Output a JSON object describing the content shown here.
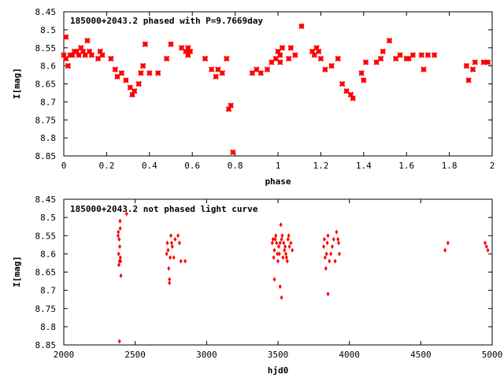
{
  "chart_data": [
    {
      "type": "scatter",
      "title": "185000+2043.2 phased with P=9.7669day",
      "xlabel": "phase",
      "ylabel": "I[mag]",
      "xlim": [
        0,
        2
      ],
      "ylim": [
        8.45,
        8.85
      ],
      "y_inverted": true,
      "grid": false,
      "legend": "none",
      "marker_color": "#ff0000",
      "marker": "cross",
      "x_ticks": [
        "0",
        "0.2",
        "0.4",
        "0.6",
        "0.8",
        "1",
        "1.2",
        "1.4",
        "1.6",
        "1.8",
        "2"
      ],
      "y_ticks": [
        "8.45",
        "8.5",
        "8.55",
        "8.6",
        "8.65",
        "8.7",
        "8.75",
        "8.8",
        "8.85"
      ],
      "series": [
        {
          "x": [
            0.0,
            0.01,
            0.01,
            0.02,
            0.03,
            0.04,
            0.05,
            0.06,
            0.07,
            0.08,
            0.09,
            0.1,
            0.11,
            0.12,
            0.13,
            0.16,
            0.17,
            0.18,
            0.22,
            0.24,
            0.25,
            0.27,
            0.29,
            0.31,
            0.32,
            0.33,
            0.35,
            0.36,
            0.37,
            0.38,
            0.4,
            0.44,
            0.48,
            0.5,
            0.55,
            0.57,
            0.58,
            0.58,
            0.59,
            0.66,
            0.69,
            0.71,
            0.72,
            0.74,
            0.76,
            0.77,
            0.78,
            0.79,
            0.88,
            0.9,
            0.92,
            0.95,
            0.97,
            0.99,
            1.0,
            1.01,
            1.01,
            1.02,
            1.05,
            1.06,
            1.08,
            1.11,
            1.16,
            1.17,
            1.18,
            1.19,
            1.2,
            1.22,
            1.25,
            1.28,
            1.3,
            1.32,
            1.34,
            1.35,
            1.39,
            1.4,
            1.41,
            1.46,
            1.48,
            1.49,
            1.52,
            1.55,
            1.57,
            1.6,
            1.61,
            1.63,
            1.67,
            1.68,
            1.7,
            1.73,
            1.88,
            1.89,
            1.91,
            1.92,
            1.96,
            1.98
          ],
          "y": [
            8.57,
            8.52,
            8.58,
            8.6,
            8.57,
            8.57,
            8.56,
            8.56,
            8.57,
            8.55,
            8.56,
            8.57,
            8.53,
            8.56,
            8.57,
            8.58,
            8.56,
            8.57,
            8.58,
            8.61,
            8.63,
            8.62,
            8.64,
            8.66,
            8.68,
            8.67,
            8.65,
            8.62,
            8.6,
            8.54,
            8.62,
            8.62,
            8.58,
            8.54,
            8.55,
            8.56,
            8.55,
            8.57,
            8.56,
            8.58,
            8.61,
            8.63,
            8.61,
            8.62,
            8.58,
            8.72,
            8.71,
            8.84,
            8.62,
            8.61,
            8.62,
            8.61,
            8.59,
            8.58,
            8.56,
            8.57,
            8.59,
            8.55,
            8.58,
            8.55,
            8.57,
            8.49,
            8.56,
            8.57,
            8.55,
            8.56,
            8.58,
            8.61,
            8.6,
            8.58,
            8.65,
            8.67,
            8.68,
            8.69,
            8.62,
            8.64,
            8.59,
            8.59,
            8.58,
            8.56,
            8.53,
            8.58,
            8.57,
            8.58,
            8.58,
            8.57,
            8.57,
            8.61,
            8.57,
            8.57,
            8.6,
            8.64,
            8.61,
            8.59,
            8.59,
            8.59
          ]
        }
      ]
    },
    {
      "type": "scatter",
      "title": "185000+2043.2 not phased light curve",
      "xlabel": "hjd0",
      "ylabel": "I[mag]",
      "xlim": [
        2000,
        5000
      ],
      "ylim": [
        8.45,
        8.85
      ],
      "y_inverted": true,
      "grid": false,
      "legend": "none",
      "marker_color": "#ff0000",
      "marker": "diamond",
      "x_ticks": [
        "2000",
        "2500",
        "3000",
        "3500",
        "4000",
        "4500",
        "5000"
      ],
      "y_ticks": [
        "8.45",
        "8.5",
        "8.55",
        "8.6",
        "8.65",
        "8.7",
        "8.75",
        "8.8",
        "8.85"
      ],
      "series": [
        {
          "x": [
            2380,
            2382,
            2384,
            2386,
            2388,
            2390,
            2392,
            2394,
            2395,
            2396,
            2398,
            2400,
            2390,
            2440,
            2720,
            2725,
            2730,
            2735,
            2740,
            2745,
            2750,
            2755,
            2760,
            2770,
            2780,
            2800,
            2810,
            2820,
            2850,
            2740,
            3460,
            3465,
            3470,
            3475,
            3480,
            3485,
            3490,
            3495,
            3500,
            3505,
            3510,
            3515,
            3520,
            3525,
            3530,
            3535,
            3540,
            3545,
            3550,
            3555,
            3560,
            3565,
            3570,
            3575,
            3580,
            3590,
            3600,
            3475,
            3515,
            3525,
            3820,
            3825,
            3830,
            3835,
            3840,
            3845,
            3850,
            3860,
            3870,
            3880,
            3890,
            3900,
            3910,
            3920,
            3925,
            3930,
            3850,
            4670,
            4690,
            4950,
            4960,
            4970
          ],
          "y": [
            8.55,
            8.54,
            8.6,
            8.63,
            8.56,
            8.62,
            8.58,
            8.51,
            8.53,
            8.61,
            8.62,
            8.66,
            8.84,
            8.49,
            8.6,
            8.57,
            8.59,
            8.64,
            8.67,
            8.61,
            8.55,
            8.57,
            8.58,
            8.61,
            8.56,
            8.55,
            8.57,
            8.62,
            8.62,
            8.68,
            8.57,
            8.56,
            8.61,
            8.59,
            8.56,
            8.55,
            8.57,
            8.6,
            8.62,
            8.58,
            8.6,
            8.57,
            8.52,
            8.56,
            8.55,
            8.61,
            8.57,
            8.59,
            8.58,
            8.6,
            8.61,
            8.62,
            8.56,
            8.55,
            8.58,
            8.57,
            8.59,
            8.67,
            8.69,
            8.72,
            8.58,
            8.56,
            8.61,
            8.64,
            8.6,
            8.57,
            8.55,
            8.62,
            8.6,
            8.58,
            8.56,
            8.62,
            8.54,
            8.56,
            8.57,
            8.6,
            8.71,
            8.59,
            8.57,
            8.57,
            8.58,
            8.59
          ]
        }
      ]
    }
  ]
}
